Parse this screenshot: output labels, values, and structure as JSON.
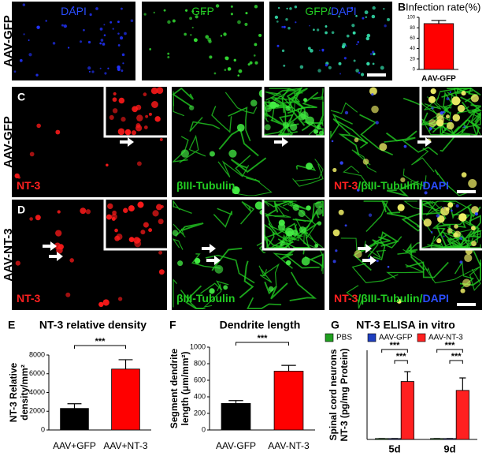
{
  "panel_labels": [
    "A",
    "B",
    "C",
    "D",
    "E",
    "F",
    "G"
  ],
  "row_labels": [
    "AAV-GFP",
    "AAV-GFP",
    "AAV-NT-3"
  ],
  "image_labels": [
    [
      {
        "text": "DAPI",
        "color": "#2a4dff"
      }
    ],
    [
      {
        "text": "GFP",
        "color": "#22cc22"
      }
    ],
    [
      {
        "text": "GFP/",
        "color": "#22cc22"
      },
      {
        "text": "DAPI",
        "color": "#2a4dff"
      }
    ],
    [
      {
        "text": "NT-3",
        "color": "#ff2020"
      }
    ],
    [
      {
        "text": "βIII-Tubulin",
        "color": "#22cc22"
      }
    ],
    [
      {
        "text": "NT-3",
        "color": "#ff2020"
      },
      {
        "text": "/βIII-Tubulin/",
        "color": "#22cc22"
      },
      {
        "text": "DAPI",
        "color": "#2a4dff"
      }
    ],
    [
      {
        "text": "NT-3",
        "color": "#ff2020"
      }
    ],
    [
      {
        "text": "βIII-Tubulin",
        "color": "#22cc22"
      }
    ],
    [
      {
        "text": "NT-3",
        "color": "#ff2020"
      },
      {
        "text": "/βIII-Tubulin/",
        "color": "#22cc22"
      },
      {
        "text": "DAPI",
        "color": "#2a4dff"
      }
    ]
  ],
  "chart_data": [
    {
      "type": "bar",
      "title": "Infection rate(%)",
      "categories": [
        "AAV-GFP"
      ],
      "values": [
        88
      ],
      "errors": [
        6
      ],
      "color": "#ff0000",
      "ylim": [
        0,
        100
      ],
      "yticks": [
        0,
        20,
        40,
        60,
        80,
        100
      ]
    },
    {
      "type": "bar",
      "title": "NT-3 relative density",
      "ylabel_lines": [
        "NT-3 Relative",
        "density/mm²"
      ],
      "categories": [
        "AAV+GFP",
        "AAV+NT-3"
      ],
      "values": [
        2300,
        6500
      ],
      "errors": [
        500,
        1000
      ],
      "colors": [
        "#000000",
        "#ff0000"
      ],
      "ylim": [
        0,
        8000
      ],
      "yticks": [
        0,
        2000,
        4000,
        6000,
        8000
      ],
      "annotations": [
        "***"
      ]
    },
    {
      "type": "bar",
      "title": "Dendrite length",
      "ylabel_lines": [
        "Segment dendrite",
        "length (μm/mm²)"
      ],
      "categories": [
        "AAV-GFP",
        "AAV-NT-3"
      ],
      "values": [
        320,
        710
      ],
      "errors": [
        35,
        70
      ],
      "colors": [
        "#000000",
        "#ff0000"
      ],
      "ylim": [
        0,
        1000
      ],
      "yticks": [
        0,
        200,
        400,
        600,
        800,
        1000
      ],
      "annotations": [
        "***"
      ]
    },
    {
      "type": "bar",
      "title": "NT-3 ELISA in vitro",
      "ylabel_lines": [
        "Spinal cord neurons",
        "NT-3 (pg/mg Protein)"
      ],
      "categories": [
        "5d",
        "9d"
      ],
      "series": [
        {
          "name": "PBS",
          "color": "#1fa01f",
          "values": [
            1,
            1
          ],
          "errors": [
            0,
            0
          ]
        },
        {
          "name": "AAV-GFP",
          "color": "#1f3fbf",
          "values": [
            1,
            1
          ],
          "errors": [
            0,
            0
          ]
        },
        {
          "name": "AAV-NT-3",
          "color": "#ff2020",
          "values": [
            65,
            55
          ],
          "errors": [
            11,
            14
          ]
        }
      ],
      "ylim": [
        0,
        100
      ],
      "annotations": [
        "***",
        "***",
        "***",
        "***"
      ]
    }
  ]
}
